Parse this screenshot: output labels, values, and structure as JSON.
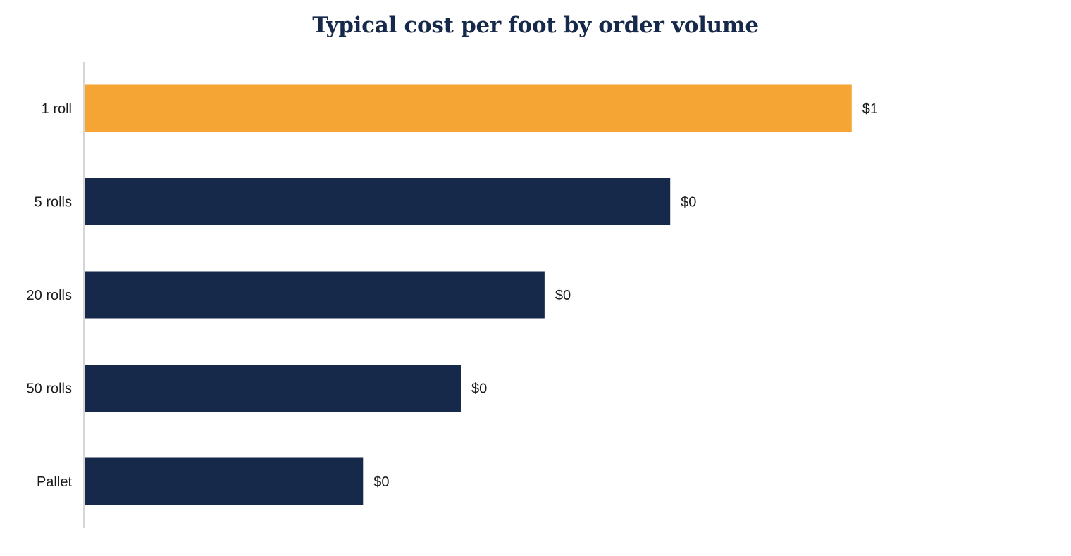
{
  "colors": {
    "title": "#16294a",
    "highlight_bar": "#f5a533",
    "bar": "#16294a",
    "axis_line": "#d6d6d6"
  },
  "chart_data": {
    "type": "bar",
    "orientation": "horizontal",
    "title": "Typical cost per foot by order volume",
    "categories": [
      "1 roll",
      "5 rolls",
      "20 rolls",
      "50 rolls",
      "Pallet"
    ],
    "values": [
      0.55,
      0.42,
      0.33,
      0.27,
      0.2
    ],
    "value_labels": [
      "$1",
      "$0",
      "$0",
      "$0",
      "$0"
    ],
    "highlight_index": 0,
    "xlim": [
      0,
      0.7
    ],
    "grid": false,
    "legend": "none"
  }
}
